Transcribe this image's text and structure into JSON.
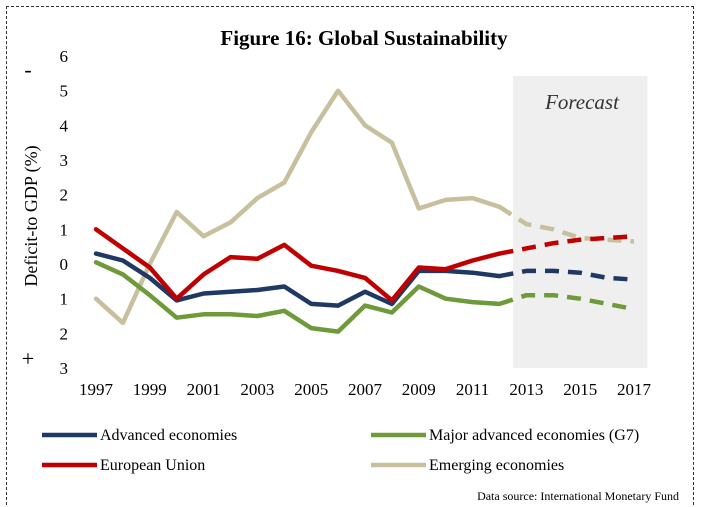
{
  "chart_data": {
    "type": "line",
    "title": "Figure 16: Global Sustainability",
    "ylabel": "Deficit-to GDP (%)",
    "y_sign_top": "-",
    "y_sign_bottom": "+",
    "y_tick_labels": [
      "6",
      "5",
      "4",
      "3",
      "2",
      "1",
      "0",
      "1",
      "2",
      "3"
    ],
    "y_tick_values": [
      6,
      5,
      4,
      3,
      2,
      1,
      0,
      -1,
      -2,
      -3
    ],
    "ylim": [
      -3,
      6
    ],
    "xlim": [
      1997,
      2017
    ],
    "x_tick_labels": [
      "1997",
      "1999",
      "2001",
      "2003",
      "2005",
      "2007",
      "2009",
      "2011",
      "2013",
      "2015",
      "2017"
    ],
    "forecast_label": "Forecast",
    "forecast_range": [
      2012.5,
      2017.5
    ],
    "forecast_start": 2012,
    "source": "Data source: International Monetary Fund",
    "x": [
      1997,
      1998,
      1999,
      2000,
      2001,
      2002,
      2003,
      2004,
      2005,
      2006,
      2007,
      2008,
      2009,
      2010,
      2011,
      2012,
      2013,
      2014,
      2015,
      2016,
      2017
    ],
    "series": [
      {
        "name": "Advanced economies",
        "color": "#1f3864",
        "values": [
          0.3,
          0.1,
          -0.4,
          -1.05,
          -0.85,
          -0.8,
          -0.75,
          -0.65,
          -1.15,
          -1.2,
          -0.8,
          -1.15,
          -0.2,
          -0.2,
          -0.25,
          -0.35,
          -0.2,
          -0.2,
          -0.25,
          -0.4,
          -0.45
        ]
      },
      {
        "name": "Major advanced economies (G7)",
        "color": "#6e9a3a",
        "values": [
          0.05,
          -0.3,
          -0.9,
          -1.55,
          -1.45,
          -1.45,
          -1.5,
          -1.35,
          -1.85,
          -1.95,
          -1.2,
          -1.4,
          -0.65,
          -1.0,
          -1.1,
          -1.15,
          -0.9,
          -0.9,
          -1.0,
          -1.15,
          -1.3
        ]
      },
      {
        "name": "European Union",
        "color": "#c00000",
        "values": [
          1.0,
          0.45,
          -0.1,
          -1.0,
          -0.3,
          0.2,
          0.15,
          0.55,
          -0.05,
          -0.2,
          -0.4,
          -1.05,
          -0.1,
          -0.15,
          0.1,
          0.3,
          0.45,
          0.6,
          0.7,
          0.75,
          0.8
        ]
      },
      {
        "name": "Emerging economies",
        "color": "#c8bf9e",
        "values": [
          -1.0,
          -1.7,
          0.0,
          1.5,
          0.8,
          1.2,
          1.9,
          2.35,
          3.8,
          5.0,
          4.0,
          3.5,
          1.6,
          1.85,
          1.9,
          1.65,
          1.15,
          1.0,
          0.75,
          0.7,
          0.65
        ]
      }
    ],
    "legend_placement": "bottom"
  }
}
